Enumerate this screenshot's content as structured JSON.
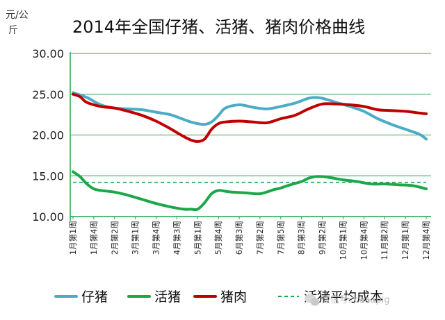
{
  "chart_data": {
    "type": "line",
    "title": "2014年全国仔猪、活猪、猪肉价格曲线",
    "ylabel": "元/公斤",
    "ylim": [
      10,
      30
    ],
    "yticks": [
      "10.00",
      "15.00",
      "20.00",
      "25.00",
      "30.00"
    ],
    "ytick_values": [
      10,
      15,
      20,
      25,
      30
    ],
    "grid": true,
    "legend_position": "bottom",
    "categories": [
      "1月第1周",
      "1月第4周",
      "2月第2周",
      "3月第1周",
      "3月第4周",
      "4月第3周",
      "5月第1周",
      "5月第4周",
      "6月第3周",
      "7月第2周",
      "7月第5周",
      "8月第3周",
      "9月第2周",
      "10月第1周",
      "10月第4周",
      "11月第2周",
      "12月第1周",
      "12月第4周"
    ],
    "x_positions": [
      1,
      4,
      7,
      10,
      13,
      16,
      19,
      22,
      25,
      28,
      31,
      34,
      37,
      40,
      43,
      46,
      49,
      52
    ],
    "x_range": [
      1,
      52
    ],
    "series": [
      {
        "name": "仔猪",
        "color": "#4bacc6",
        "style": "solid",
        "x": [
          1,
          3,
          5,
          7,
          9,
          11,
          13,
          15,
          17,
          18,
          19,
          20,
          21,
          22,
          23,
          25,
          27,
          29,
          31,
          33,
          35,
          36,
          37,
          39,
          41,
          43,
          45,
          47,
          49,
          51,
          52
        ],
        "values": [
          25.2,
          24.6,
          23.7,
          23.3,
          23.2,
          23.1,
          22.8,
          22.5,
          21.9,
          21.6,
          21.4,
          21.3,
          21.6,
          22.4,
          23.3,
          23.7,
          23.4,
          23.2,
          23.5,
          23.9,
          24.5,
          24.6,
          24.5,
          24.0,
          23.5,
          22.9,
          22.0,
          21.3,
          20.7,
          20.1,
          19.5
        ]
      },
      {
        "name": "活猪",
        "color": "#1ca84a",
        "style": "solid",
        "x": [
          1,
          2,
          3,
          4,
          5,
          7,
          9,
          11,
          13,
          15,
          17,
          18,
          19,
          20,
          21,
          22,
          23,
          24,
          26,
          28,
          30,
          31,
          32,
          34,
          35,
          36,
          37,
          38,
          40,
          42,
          44,
          46,
          48,
          50,
          52
        ],
        "values": [
          15.5,
          14.9,
          14.0,
          13.4,
          13.2,
          13.0,
          12.6,
          12.1,
          11.6,
          11.2,
          10.9,
          10.9,
          10.9,
          11.7,
          12.8,
          13.2,
          13.1,
          13.0,
          12.9,
          12.8,
          13.3,
          13.5,
          13.8,
          14.3,
          14.7,
          14.9,
          14.9,
          14.8,
          14.5,
          14.3,
          14.0,
          14.0,
          13.9,
          13.8,
          13.4
        ]
      },
      {
        "name": "猪肉",
        "color": "#c00000",
        "style": "solid",
        "x": [
          1,
          2,
          3,
          5,
          7,
          9,
          11,
          13,
          15,
          16,
          17,
          18,
          19,
          20,
          21,
          22,
          23,
          25,
          27,
          29,
          31,
          33,
          35,
          37,
          39,
          41,
          43,
          45,
          47,
          49,
          51,
          52
        ],
        "values": [
          25.0,
          24.7,
          24.0,
          23.5,
          23.3,
          22.9,
          22.4,
          21.7,
          20.8,
          20.3,
          19.8,
          19.4,
          19.2,
          19.5,
          20.7,
          21.4,
          21.6,
          21.7,
          21.6,
          21.5,
          22.0,
          22.4,
          23.2,
          23.8,
          23.8,
          23.7,
          23.5,
          23.1,
          23.0,
          22.9,
          22.7,
          22.6
        ]
      },
      {
        "name": "活猪平均成本",
        "color": "#1ca84a",
        "style": "dashed",
        "x": [
          1,
          52
        ],
        "values": [
          14.2,
          14.2
        ]
      }
    ]
  },
  "watermark": "微信号: caaapig"
}
